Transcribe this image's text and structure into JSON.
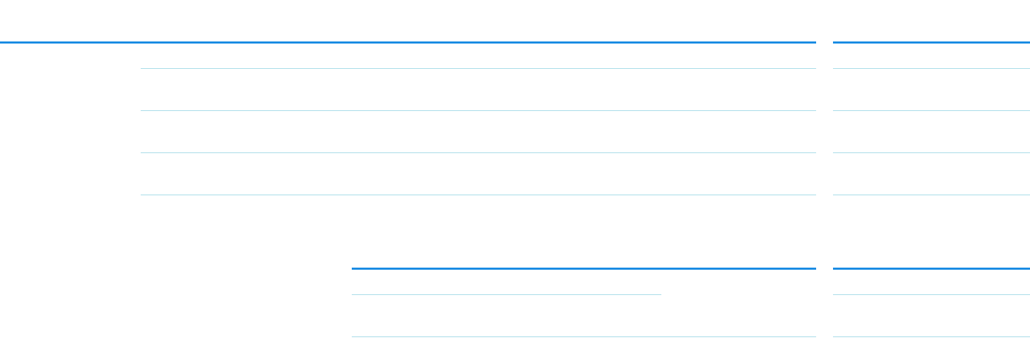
{
  "colors": {
    "accent": "#1a8ce3",
    "divider": "#a8dce8",
    "background": "#ffffff"
  },
  "upper_section": {
    "main_table": {
      "row_count": 3
    },
    "side_table": {
      "row_count": 3
    }
  },
  "lower_section": {
    "main_table": {
      "row_count": 1
    },
    "side_table": {
      "row_count": 1
    }
  }
}
